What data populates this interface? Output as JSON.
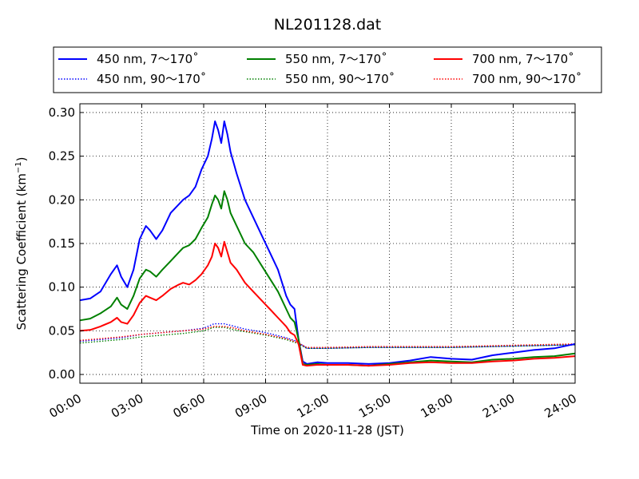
{
  "chart_data": {
    "type": "line",
    "title": "NL201128.dat",
    "xlabel": "Time on 2020-11-28 (JST)",
    "ylabel_main": "Scattering Coefficient (km",
    "ylabel_sup": "−1",
    "ylabel_close": ")",
    "xlim": [
      0,
      24
    ],
    "ylim": [
      -0.01,
      0.31
    ],
    "x_ticks": [
      0,
      3,
      6,
      9,
      12,
      15,
      18,
      21,
      24
    ],
    "x_tick_labels": [
      "00:00",
      "03:00",
      "06:00",
      "09:00",
      "12:00",
      "15:00",
      "18:00",
      "21:00",
      "24:00"
    ],
    "y_ticks": [
      0.0,
      0.05,
      0.1,
      0.15,
      0.2,
      0.25,
      0.3
    ],
    "y_tick_labels": [
      "0.00",
      "0.05",
      "0.10",
      "0.15",
      "0.20",
      "0.25",
      "0.30"
    ],
    "grid": true,
    "legend_position": "top",
    "series": [
      {
        "name": "450 nm, 7～170˚",
        "color": "#0000ff",
        "style": "solid",
        "x": [
          0,
          0.5,
          1,
          1.5,
          1.8,
          2.0,
          2.3,
          2.6,
          2.9,
          3.2,
          3.4,
          3.7,
          4.0,
          4.4,
          4.8,
          5.0,
          5.3,
          5.6,
          5.9,
          6.2,
          6.4,
          6.55,
          6.7,
          6.85,
          7.0,
          7.15,
          7.3,
          7.6,
          8.0,
          8.4,
          8.8,
          9.2,
          9.6,
          10.0,
          10.2,
          10.4,
          10.6,
          10.8,
          11.0,
          11.5,
          12,
          13,
          14,
          15,
          16,
          17,
          18,
          19,
          20,
          21,
          22,
          23,
          24
        ],
        "y": [
          0.085,
          0.087,
          0.095,
          0.115,
          0.125,
          0.112,
          0.1,
          0.12,
          0.155,
          0.17,
          0.165,
          0.155,
          0.165,
          0.185,
          0.195,
          0.2,
          0.205,
          0.215,
          0.235,
          0.25,
          0.27,
          0.29,
          0.28,
          0.265,
          0.29,
          0.275,
          0.255,
          0.23,
          0.2,
          0.18,
          0.16,
          0.14,
          0.12,
          0.09,
          0.08,
          0.075,
          0.04,
          0.015,
          0.012,
          0.014,
          0.013,
          0.013,
          0.012,
          0.013,
          0.016,
          0.02,
          0.018,
          0.017,
          0.022,
          0.025,
          0.028,
          0.03,
          0.035
        ]
      },
      {
        "name": "450 nm, 90～170˚",
        "color": "#0000ff",
        "style": "dotted",
        "x": [
          0,
          1,
          2,
          3,
          4,
          5,
          6,
          6.5,
          7,
          7.5,
          8,
          9,
          10,
          10.5,
          11,
          12,
          14,
          16,
          18,
          20,
          22,
          24
        ],
        "y": [
          0.038,
          0.04,
          0.042,
          0.046,
          0.048,
          0.05,
          0.053,
          0.058,
          0.058,
          0.055,
          0.052,
          0.048,
          0.042,
          0.038,
          0.03,
          0.03,
          0.031,
          0.031,
          0.031,
          0.032,
          0.033,
          0.034
        ]
      },
      {
        "name": "550 nm, 7～170˚",
        "color": "#008000",
        "style": "solid",
        "x": [
          0,
          0.5,
          1,
          1.5,
          1.8,
          2.0,
          2.3,
          2.6,
          2.9,
          3.2,
          3.4,
          3.7,
          4.0,
          4.4,
          4.8,
          5.0,
          5.3,
          5.6,
          5.9,
          6.2,
          6.4,
          6.55,
          6.7,
          6.85,
          7.0,
          7.15,
          7.3,
          7.6,
          8.0,
          8.4,
          8.8,
          9.2,
          9.6,
          10.0,
          10.2,
          10.4,
          10.6,
          10.8,
          11.0,
          11.5,
          12,
          13,
          14,
          15,
          16,
          17,
          18,
          19,
          20,
          21,
          22,
          23,
          24
        ],
        "y": [
          0.062,
          0.064,
          0.07,
          0.078,
          0.088,
          0.08,
          0.075,
          0.09,
          0.11,
          0.12,
          0.118,
          0.112,
          0.12,
          0.13,
          0.14,
          0.145,
          0.148,
          0.155,
          0.168,
          0.18,
          0.195,
          0.205,
          0.2,
          0.19,
          0.21,
          0.2,
          0.185,
          0.17,
          0.15,
          0.14,
          0.125,
          0.11,
          0.095,
          0.075,
          0.065,
          0.06,
          0.04,
          0.012,
          0.011,
          0.012,
          0.011,
          0.011,
          0.01,
          0.012,
          0.014,
          0.016,
          0.015,
          0.014,
          0.017,
          0.018,
          0.02,
          0.021,
          0.024
        ]
      },
      {
        "name": "550 nm, 90～170˚",
        "color": "#008000",
        "style": "dotted",
        "x": [
          0,
          1,
          2,
          3,
          4,
          5,
          6,
          6.5,
          7,
          7.5,
          8,
          9,
          10,
          10.5,
          11,
          12,
          14,
          16,
          18,
          20,
          22,
          24
        ],
        "y": [
          0.036,
          0.038,
          0.04,
          0.043,
          0.045,
          0.047,
          0.05,
          0.054,
          0.054,
          0.051,
          0.049,
          0.045,
          0.04,
          0.036,
          0.03,
          0.03,
          0.031,
          0.031,
          0.031,
          0.032,
          0.033,
          0.034
        ]
      },
      {
        "name": "700 nm, 7～170˚",
        "color": "#ff0000",
        "style": "solid",
        "x": [
          0,
          0.5,
          1,
          1.5,
          1.8,
          2.0,
          2.3,
          2.6,
          2.9,
          3.2,
          3.4,
          3.7,
          4.0,
          4.4,
          4.8,
          5.0,
          5.3,
          5.6,
          5.9,
          6.2,
          6.4,
          6.55,
          6.7,
          6.85,
          7.0,
          7.15,
          7.3,
          7.6,
          8.0,
          8.4,
          8.8,
          9.2,
          9.6,
          10.0,
          10.2,
          10.4,
          10.6,
          10.8,
          11.0,
          11.5,
          12,
          13,
          14,
          15,
          16,
          17,
          18,
          19,
          20,
          21,
          22,
          23,
          24
        ],
        "y": [
          0.05,
          0.051,
          0.055,
          0.06,
          0.065,
          0.06,
          0.058,
          0.068,
          0.082,
          0.09,
          0.088,
          0.085,
          0.09,
          0.098,
          0.103,
          0.105,
          0.103,
          0.108,
          0.115,
          0.125,
          0.135,
          0.15,
          0.145,
          0.135,
          0.152,
          0.14,
          0.128,
          0.12,
          0.105,
          0.095,
          0.085,
          0.075,
          0.065,
          0.055,
          0.048,
          0.045,
          0.035,
          0.011,
          0.01,
          0.011,
          0.011,
          0.011,
          0.01,
          0.011,
          0.013,
          0.014,
          0.013,
          0.013,
          0.015,
          0.016,
          0.018,
          0.019,
          0.021
        ]
      },
      {
        "name": "700 nm, 90～170˚",
        "color": "#ff0000",
        "style": "dotted",
        "x": [
          0,
          1,
          2,
          3,
          4,
          5,
          6,
          6.5,
          7,
          7.5,
          8,
          9,
          10,
          10.5,
          11,
          12,
          14,
          16,
          18,
          20,
          22,
          24
        ],
        "y": [
          0.039,
          0.041,
          0.043,
          0.046,
          0.048,
          0.05,
          0.052,
          0.055,
          0.055,
          0.053,
          0.05,
          0.046,
          0.041,
          0.037,
          0.031,
          0.031,
          0.032,
          0.032,
          0.032,
          0.033,
          0.034,
          0.035
        ]
      }
    ]
  }
}
